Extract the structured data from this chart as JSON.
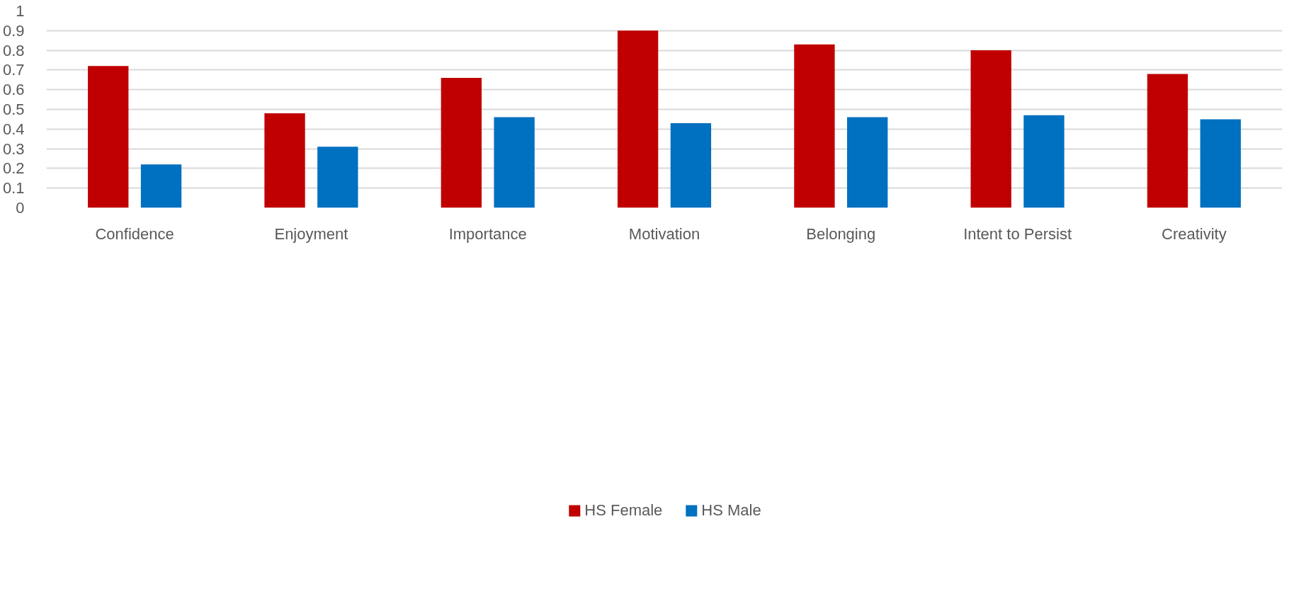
{
  "chart_data": {
    "type": "bar",
    "categories": [
      "Confidence",
      "Enjoyment",
      "Importance",
      "Motivation",
      "Belonging",
      "Intent to Persist",
      "Creativity"
    ],
    "series": [
      {
        "name": "HS Female",
        "color": "#c00000",
        "values": [
          0.72,
          0.48,
          0.66,
          0.9,
          0.83,
          0.8,
          0.68
        ]
      },
      {
        "name": "HS Male",
        "color": "#0070c0",
        "values": [
          0.22,
          0.31,
          0.46,
          0.43,
          0.46,
          0.47,
          0.45
        ]
      }
    ],
    "ylim": [
      0,
      1
    ],
    "yticks": [
      0,
      0.1,
      0.2,
      0.3,
      0.4,
      0.5,
      0.6,
      0.7,
      0.8,
      0.9,
      1
    ],
    "grid": "y",
    "legend": "bottom"
  }
}
